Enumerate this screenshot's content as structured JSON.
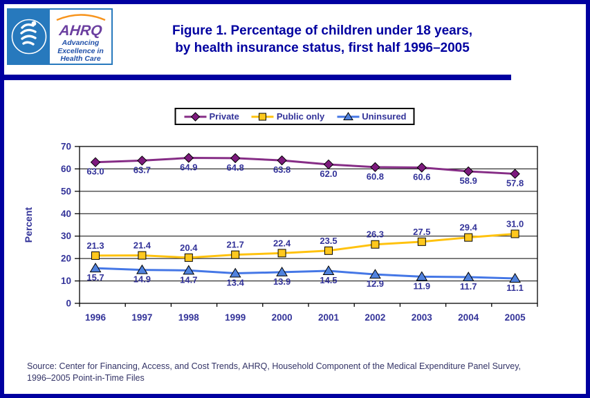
{
  "header": {
    "hhs_seal_label": "Department of Health & Human Services seal",
    "ahrq_logo": {
      "acronym": "AHRQ",
      "tagline_lines": [
        "Advancing",
        "Excellence in",
        "Health Care"
      ]
    },
    "title_lines": [
      "Figure 1. Percentage of children under 18 years,",
      "by health insurance status, first half 1996–2005"
    ]
  },
  "chart_data": {
    "type": "line",
    "categories": [
      "1996",
      "1997",
      "1998",
      "1999",
      "2000",
      "2001",
      "2002",
      "2003",
      "2004",
      "2005"
    ],
    "series": [
      {
        "name": "Private",
        "marker": "diamond",
        "line_color": "#862D86",
        "marker_color": "#7D1A7D",
        "values": [
          63.0,
          63.7,
          64.9,
          64.8,
          63.8,
          62.0,
          60.8,
          60.6,
          58.9,
          57.8
        ]
      },
      {
        "name": "Public only",
        "marker": "square",
        "line_color": "#FFC20E",
        "marker_color": "#FFC81E",
        "values": [
          21.3,
          21.4,
          20.4,
          21.7,
          22.4,
          23.5,
          26.3,
          27.5,
          29.4,
          31.0
        ]
      },
      {
        "name": "Uninsured",
        "marker": "triangle",
        "line_color": "#4577E6",
        "marker_color": "#5082DE",
        "values": [
          15.7,
          14.9,
          14.7,
          13.4,
          13.9,
          14.5,
          12.9,
          11.9,
          11.7,
          11.1
        ]
      }
    ],
    "xlabel": "",
    "ylabel": "Percent",
    "ylim": [
      0,
      70
    ],
    "ytick_interval": 10,
    "grid": true,
    "legend_position": "top",
    "data_labels": true
  },
  "footer": {
    "source_lines": [
      "Source: Center for Financing, Access, and Cost Trends, AHRQ, Household Component of the Medical Expenditure Panel Survey,",
      "1996–2005 Point-in-Time Files"
    ]
  },
  "colors": {
    "frame": "#0000A0",
    "title_text": "#0000A0",
    "axis_text": "#333399",
    "data_label_text": "#333399",
    "source_text": "#333366",
    "plot_border": "#000000",
    "hhs_panel_blue": "#2779BD",
    "ahrq_purple": "#6B3FA0",
    "ahrq_tagline_blue": "#1F4FA8",
    "ahrq_arc_orange": "#F7941D"
  }
}
